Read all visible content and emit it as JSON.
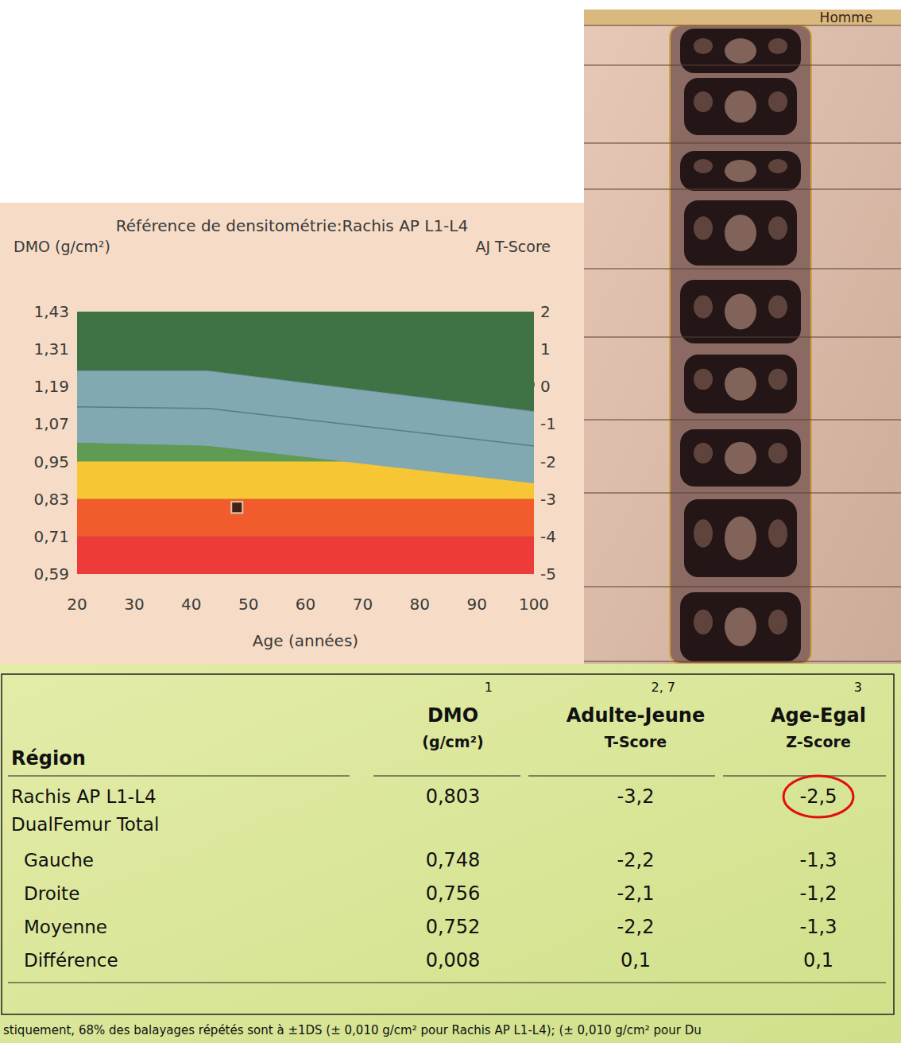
{
  "chart_data": {
    "type": "area",
    "title": "Référence de densitométrie:Rachis AP L1-L4",
    "y_label": "DMO (g/cm²)",
    "y2_label": "AJ T-Score",
    "x_label": "Age (années)",
    "xlim": [
      20,
      100
    ],
    "xticks": [
      20,
      30,
      40,
      50,
      60,
      70,
      80,
      90,
      100
    ],
    "ylim": [
      0.59,
      1.43
    ],
    "yticks": [
      {
        "value": 0.59,
        "label": "0,59"
      },
      {
        "value": 0.71,
        "label": "0,71"
      },
      {
        "value": 0.83,
        "label": "0,83"
      },
      {
        "value": 0.95,
        "label": "0,95"
      },
      {
        "value": 1.07,
        "label": "1,07"
      },
      {
        "value": 1.19,
        "label": "1,19"
      },
      {
        "value": 1.31,
        "label": "1,31"
      },
      {
        "value": 1.43,
        "label": "1,43"
      }
    ],
    "y2lim": [
      -5,
      2
    ],
    "y2ticks": [
      -5,
      -4,
      -3,
      -2,
      -1,
      0,
      1,
      2
    ],
    "grid": false,
    "zones": [
      {
        "from": 0.95,
        "to": 1.43,
        "color": "#3f7245"
      },
      {
        "from": 0.83,
        "to": 0.95,
        "color": "#f6c634"
      },
      {
        "from": 0.71,
        "to": 0.83,
        "color": "#f25c2c"
      },
      {
        "from": 0.59,
        "to": 0.71,
        "color": "#ec3b38"
      }
    ],
    "reference": {
      "x": [
        20,
        43,
        100
      ],
      "upper": [
        1.24,
        1.24,
        1.11
      ],
      "mean": [
        1.125,
        1.12,
        1.0
      ],
      "lower": [
        1.01,
        1.0,
        0.88
      ],
      "color": "#82a9b2"
    },
    "series": [
      {
        "type": "scatter",
        "x": [
          48
        ],
        "values": [
          0.803
        ],
        "color": "#141414",
        "marker": "square"
      }
    ]
  },
  "scan": {
    "header": "Homme"
  },
  "table": {
    "row_header": "Région",
    "columns": [
      {
        "title": "DMO",
        "unit": "(g/cm²)",
        "note": "1"
      },
      {
        "title": "Adulte-Jeune",
        "unit": "T-Score",
        "note": "2, 7"
      },
      {
        "title": "Age-Egal",
        "unit": "Z-Score",
        "note": "3"
      }
    ],
    "rows": [
      {
        "label": "Rachis AP L1-L4",
        "values": [
          "0,803",
          "-3,2",
          {
            "text": "-2,5",
            "circled": true
          }
        ]
      },
      {
        "label": "DualFemur Total",
        "rows": [
          {
            "label": "Gauche",
            "values": [
              "0,748",
              "-2,2",
              "-1,3"
            ]
          },
          {
            "label": "Droite",
            "values": [
              "0,756",
              "-2,1",
              "-1,2"
            ]
          },
          {
            "label": "Moyenne",
            "values": [
              "0,752",
              "-2,2",
              "-1,3"
            ]
          },
          {
            "label": "Différence",
            "values": [
              "0,008",
              "0,1",
              "0,1"
            ]
          }
        ]
      }
    ]
  },
  "footnote": "stiquement, 68% des balayages répétés sont à ±1DS (± 0,010 g/cm² pour Rachis AP L1-L4); (± 0,010 g/cm² pour Du"
}
